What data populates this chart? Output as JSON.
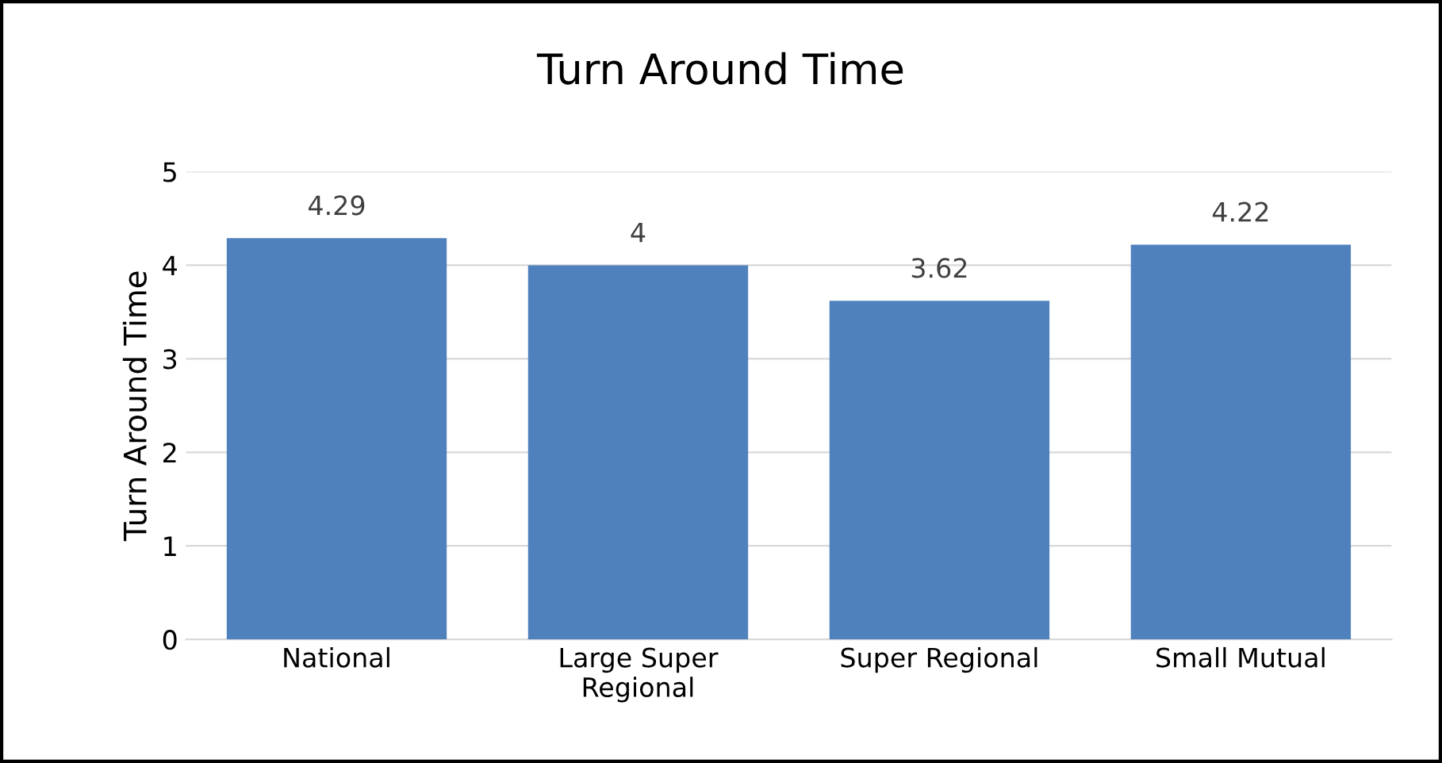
{
  "chart_data": {
    "type": "bar",
    "title": "Turn Around Time",
    "ylabel": "Turn Around Time",
    "categories": [
      "National",
      "Large Super\nRegional",
      "Super Regional",
      "Small Mutual"
    ],
    "values": [
      4.29,
      4,
      3.62,
      4.22
    ],
    "color": "#4f81bd",
    "ylim": [
      0,
      5
    ],
    "yticks": [
      0,
      1,
      2,
      3,
      4,
      5
    ],
    "grid": "y",
    "data_labels": true
  }
}
